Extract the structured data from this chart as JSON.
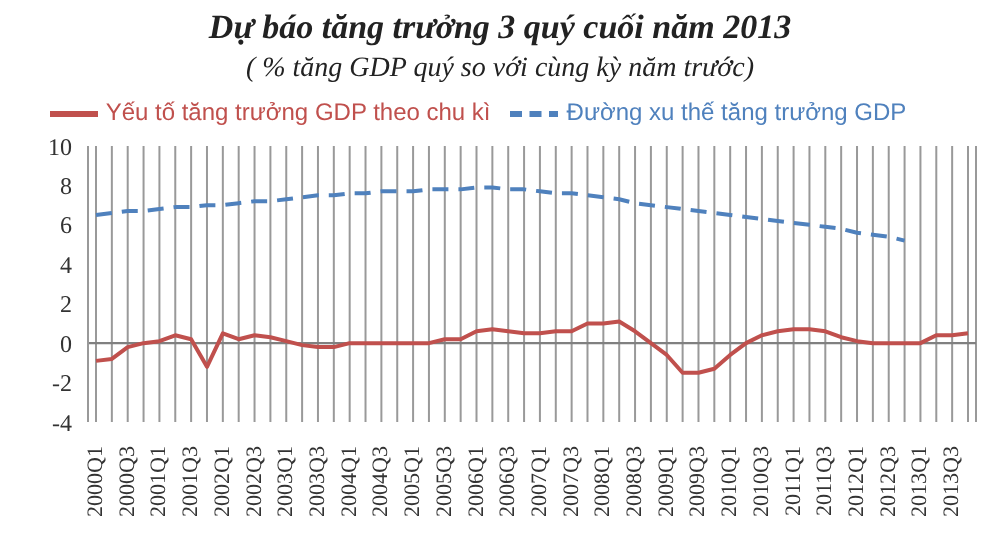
{
  "chart_data": {
    "type": "line",
    "title": "Dự báo tăng trưởng 3 quý cuối năm 2013",
    "subtitle": "( % tăng GDP quý  so với cùng kỳ năm trước)",
    "categories": [
      "2000Q1",
      null,
      "2000Q3",
      null,
      "2001Q1",
      null,
      "2001Q3",
      null,
      "2002Q1",
      null,
      "2002Q3",
      null,
      "2003Q1",
      null,
      "2003Q3",
      null,
      "2004Q1",
      null,
      "2004Q3",
      null,
      "2005Q1",
      null,
      "2005Q3",
      null,
      "2006Q1",
      null,
      "2006Q3",
      null,
      "2007Q1",
      null,
      "2007Q3",
      null,
      "2008Q1",
      null,
      "2008Q3",
      null,
      "2009Q1",
      null,
      "2009Q3",
      null,
      "2010Q1",
      null,
      "2010Q3",
      null,
      "2011Q1",
      null,
      "2011Q3",
      null,
      "2012Q1",
      null,
      "2012Q3",
      null,
      "2013Q1",
      null,
      "2013Q3",
      null
    ],
    "series": [
      {
        "name": "Đường xu thế tăng trưởng GDP",
        "color": "#4f81bd",
        "line_style": "dashed",
        "values": [
          6.5,
          6.6,
          6.7,
          6.7,
          6.8,
          6.9,
          6.9,
          7.0,
          7.0,
          7.1,
          7.2,
          7.2,
          7.3,
          7.4,
          7.5,
          7.5,
          7.6,
          7.6,
          7.7,
          7.7,
          7.7,
          7.8,
          7.8,
          7.8,
          7.9,
          7.9,
          7.8,
          7.8,
          7.7,
          7.6,
          7.6,
          7.5,
          7.4,
          7.3,
          7.1,
          7.0,
          6.9,
          6.8,
          6.7,
          6.6,
          6.5,
          6.4,
          6.3,
          6.2,
          6.1,
          6.0,
          5.9,
          5.8,
          5.6,
          5.5,
          5.4,
          5.2,
          null,
          null,
          null,
          null
        ]
      },
      {
        "name": "Yếu tố tăng trưởng GDP theo chu kì",
        "color": "#c0504d",
        "line_style": "solid",
        "values": [
          -0.9,
          -0.8,
          -0.2,
          0.0,
          0.1,
          0.4,
          0.2,
          -1.2,
          0.5,
          0.2,
          0.4,
          0.3,
          0.1,
          -0.1,
          -0.2,
          -0.2,
          0.0,
          0.0,
          0.0,
          0.0,
          0.0,
          0.0,
          0.2,
          0.2,
          0.6,
          0.7,
          0.6,
          0.5,
          0.5,
          0.6,
          0.6,
          1.0,
          1.0,
          1.1,
          0.6,
          0.0,
          -0.6,
          -1.5,
          -1.5,
          -1.3,
          -0.6,
          0.0,
          0.4,
          0.6,
          0.7,
          0.7,
          0.6,
          0.3,
          0.1,
          0.0,
          0.0,
          0.0,
          0.0,
          0.4,
          0.4,
          0.5
        ]
      }
    ],
    "ylim": [
      -4,
      10
    ],
    "yticks": [
      -4,
      -2,
      0,
      2,
      4,
      6,
      8,
      10
    ],
    "grid": "x",
    "legend": "top",
    "marker": "none",
    "ref_lines": [
      {
        "axis": "y",
        "value": 0,
        "color": "#808080"
      }
    ]
  }
}
